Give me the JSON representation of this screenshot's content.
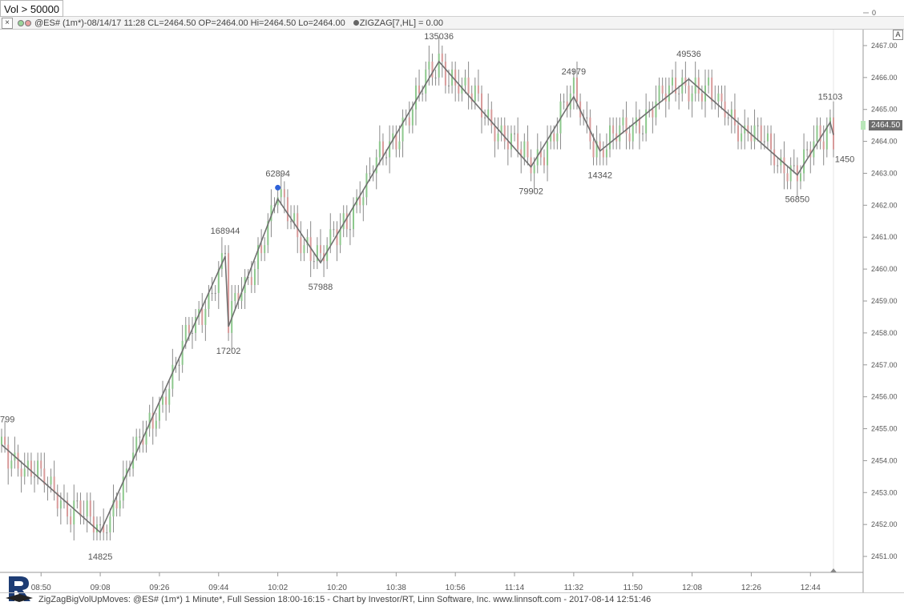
{
  "filter": {
    "label": "Vol > 50000"
  },
  "top_axis_zero": "0",
  "legend": {
    "close_label": "×",
    "symbol_info": "@ES# (1m*)-08/14/17 11:28 CL=2464.50 OP=2464.00 Hi=2464.50 Lo=2464.00",
    "indicator_info": "ZIGZAG[7,HL] = 0.00"
  },
  "auto_scale_label": "A",
  "price_tag": "2464.50",
  "footer_text": "ZigZagBigVolUpMoves: @ES# (1m*) 1 Minute*, Full Session 18:00-16:15 - Chart by Investor/RT, Linn Software, Inc. www.linnsoft.com - 2017-08-14 12:51:46",
  "colors": {
    "up_bar": "#8cc88c",
    "down_bar": "#d89a9a",
    "bar_neutral": "#8a8a8a",
    "zigzag": "#707070",
    "marker": "#2f62d8",
    "price_tag": "#6c6c6c"
  },
  "chart_data": {
    "type": "bar",
    "description_kind": "ohlc-1-minute-with-zigzag",
    "y_axis": {
      "range": [
        2450.5,
        2467.5
      ],
      "ticks": [
        "2451.00",
        "2452.00",
        "2453.00",
        "2454.00",
        "2455.00",
        "2456.00",
        "2457.00",
        "2458.00",
        "2459.00",
        "2460.00",
        "2461.00",
        "2462.00",
        "2463.00",
        "2464.00",
        "2465.00",
        "2466.00",
        "2467.00"
      ]
    },
    "x_axis": {
      "range": [
        "08:38",
        "12:51"
      ],
      "ticks": [
        "08:50",
        "09:08",
        "09:26",
        "09:44",
        "10:02",
        "10:20",
        "10:38",
        "10:56",
        "11:14",
        "11:32",
        "11:50",
        "12:08",
        "12:26",
        "12:44"
      ]
    },
    "zigzag_pivots": [
      {
        "time": "08:38",
        "price": 2454.5,
        "label": "799"
      },
      {
        "time": "09:08",
        "price": 2451.75,
        "label": "14825"
      },
      {
        "time": "09:46",
        "price": 2460.4,
        "label": "168944"
      },
      {
        "time": "09:47",
        "price": 2458.2,
        "label": "17202"
      },
      {
        "time": "10:02",
        "price": 2462.2,
        "label": "62894"
      },
      {
        "time": "10:15",
        "price": 2460.2,
        "label": "57988"
      },
      {
        "time": "10:51",
        "price": 2466.5,
        "label": "135036"
      },
      {
        "time": "11:19",
        "price": 2463.2,
        "label": "79902"
      },
      {
        "time": "11:32",
        "price": 2465.4,
        "label": "24979"
      },
      {
        "time": "11:40",
        "price": 2463.7,
        "label": "14342"
      },
      {
        "time": "12:07",
        "price": 2465.95,
        "label": "49536"
      },
      {
        "time": "12:40",
        "price": 2462.95,
        "label": "56850"
      },
      {
        "time": "12:50",
        "price": 2464.6,
        "label": "15103"
      },
      {
        "time": "12:51",
        "price": 2464.2,
        "label": "1450"
      }
    ],
    "marker": {
      "time": "10:02",
      "price": 2462.55
    },
    "last_price": 2464.5
  }
}
